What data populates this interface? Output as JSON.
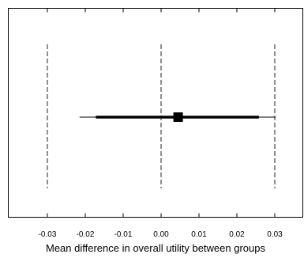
{
  "chart_data": {
    "type": "forest",
    "xlabel": "Mean difference in overall utility between groups",
    "ylabel": "",
    "title": "",
    "xlim": [
      -0.042,
      0.037
    ],
    "x_ticks": [
      -0.03,
      -0.02,
      -0.01,
      0.0,
      0.01,
      0.02,
      0.03
    ],
    "x_tick_labels": [
      "-0.03",
      "-0.02",
      "-0.01",
      "0.00",
      "0.01",
      "0.02",
      "0.03"
    ],
    "reference_lines": [
      -0.03,
      0.0,
      0.03
    ],
    "estimate": {
      "point": 0.0045,
      "thick_interval": [
        -0.0172,
        0.0258
      ],
      "thin_interval": [
        -0.0215,
        0.0302
      ]
    },
    "grid": false,
    "legend": "none",
    "colors": {
      "marks": "#000000",
      "reference_lines": "#333333",
      "frame": "#000000"
    }
  }
}
